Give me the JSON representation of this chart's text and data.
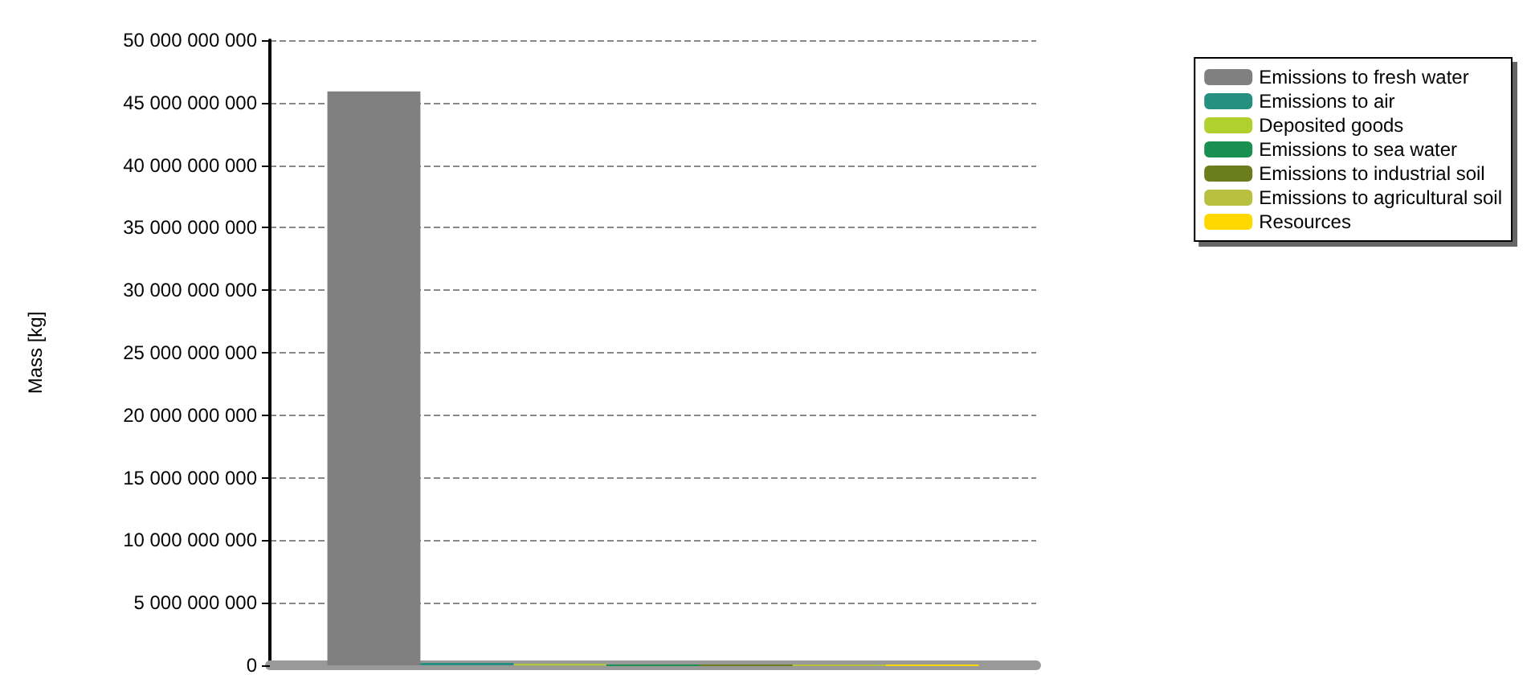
{
  "chart_data": {
    "type": "bar",
    "ylabel": "Mass [kg]",
    "categories": [
      null
    ],
    "series": [
      {
        "name": "Emissions to fresh water",
        "color": "#808080",
        "values": [
          45900000000
        ]
      },
      {
        "name": "Emissions to air",
        "color": "#25907f",
        "values": [
          200000000
        ]
      },
      {
        "name": "Deposited goods",
        "color": "#b0d030",
        "values": [
          100000000
        ]
      },
      {
        "name": "Emissions to sea water",
        "color": "#1a9050",
        "values": [
          0
        ]
      },
      {
        "name": "Emissions to industrial soil",
        "color": "#6b7d1c",
        "values": [
          0
        ]
      },
      {
        "name": "Emissions to agricultural soil",
        "color": "#b8c040",
        "values": [
          0
        ]
      },
      {
        "name": "Resources",
        "color": "#ffd800",
        "values": [
          0
        ]
      }
    ],
    "ylim": [
      0,
      50000000000
    ],
    "yticks": [
      {
        "value": 0,
        "label": "0"
      },
      {
        "value": 5000000000,
        "label": "5 000 000 000"
      },
      {
        "value": 10000000000,
        "label": "10 000 000 000"
      },
      {
        "value": 15000000000,
        "label": "15 000 000 000"
      },
      {
        "value": 20000000000,
        "label": "20 000 000 000"
      },
      {
        "value": 25000000000,
        "label": "25 000 000 000"
      },
      {
        "value": 30000000000,
        "label": "30 000 000 000"
      },
      {
        "value": 35000000000,
        "label": "35 000 000 000"
      },
      {
        "value": 40000000000,
        "label": "40 000 000 000"
      },
      {
        "value": 45000000000,
        "label": "45 000 000 000"
      },
      {
        "value": 50000000000,
        "label": "50 000 000 000"
      }
    ],
    "grid": "y",
    "legend": "top right"
  }
}
